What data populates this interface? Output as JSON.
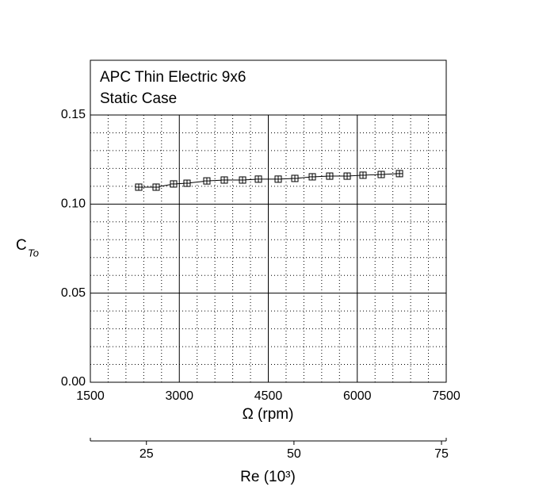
{
  "chart_data": {
    "type": "line",
    "title": [
      "APC Thin Electric 9x6",
      "Static Case"
    ],
    "xlabel": "Ω (rpm)",
    "ylabel": {
      "main": "C",
      "sub": "To"
    },
    "x2label": "Re (10³)",
    "x": [
      2315,
      2609,
      2903,
      3130,
      3464,
      3758,
      4066,
      4333,
      4667,
      4948,
      5242,
      5535,
      5830,
      6097,
      6404,
      6712
    ],
    "series": [
      {
        "name": "CTo",
        "color": "#000000",
        "values": [
          0.1095,
          0.1095,
          0.1113,
          0.1117,
          0.113,
          0.1135,
          0.1135,
          0.114,
          0.114,
          0.1144,
          0.1153,
          0.1157,
          0.1157,
          0.1162,
          0.1166,
          0.1171
        ]
      }
    ],
    "xlim": [
      1500,
      7500
    ],
    "xticks": [
      1500,
      3000,
      4500,
      6000,
      7500
    ],
    "ylim": [
      0,
      0.15
    ],
    "yticks": [
      {
        "value": 0,
        "label": "0.00"
      },
      {
        "value": 0.05,
        "label": "0.05"
      },
      {
        "value": 0.1,
        "label": "0.10"
      },
      {
        "value": 0.15,
        "label": "0.15"
      }
    ],
    "x2lim": [
      15.5,
      75.8
    ],
    "x2ticks": [
      25,
      50,
      75
    ],
    "grid": true,
    "minor_grid": true
  }
}
